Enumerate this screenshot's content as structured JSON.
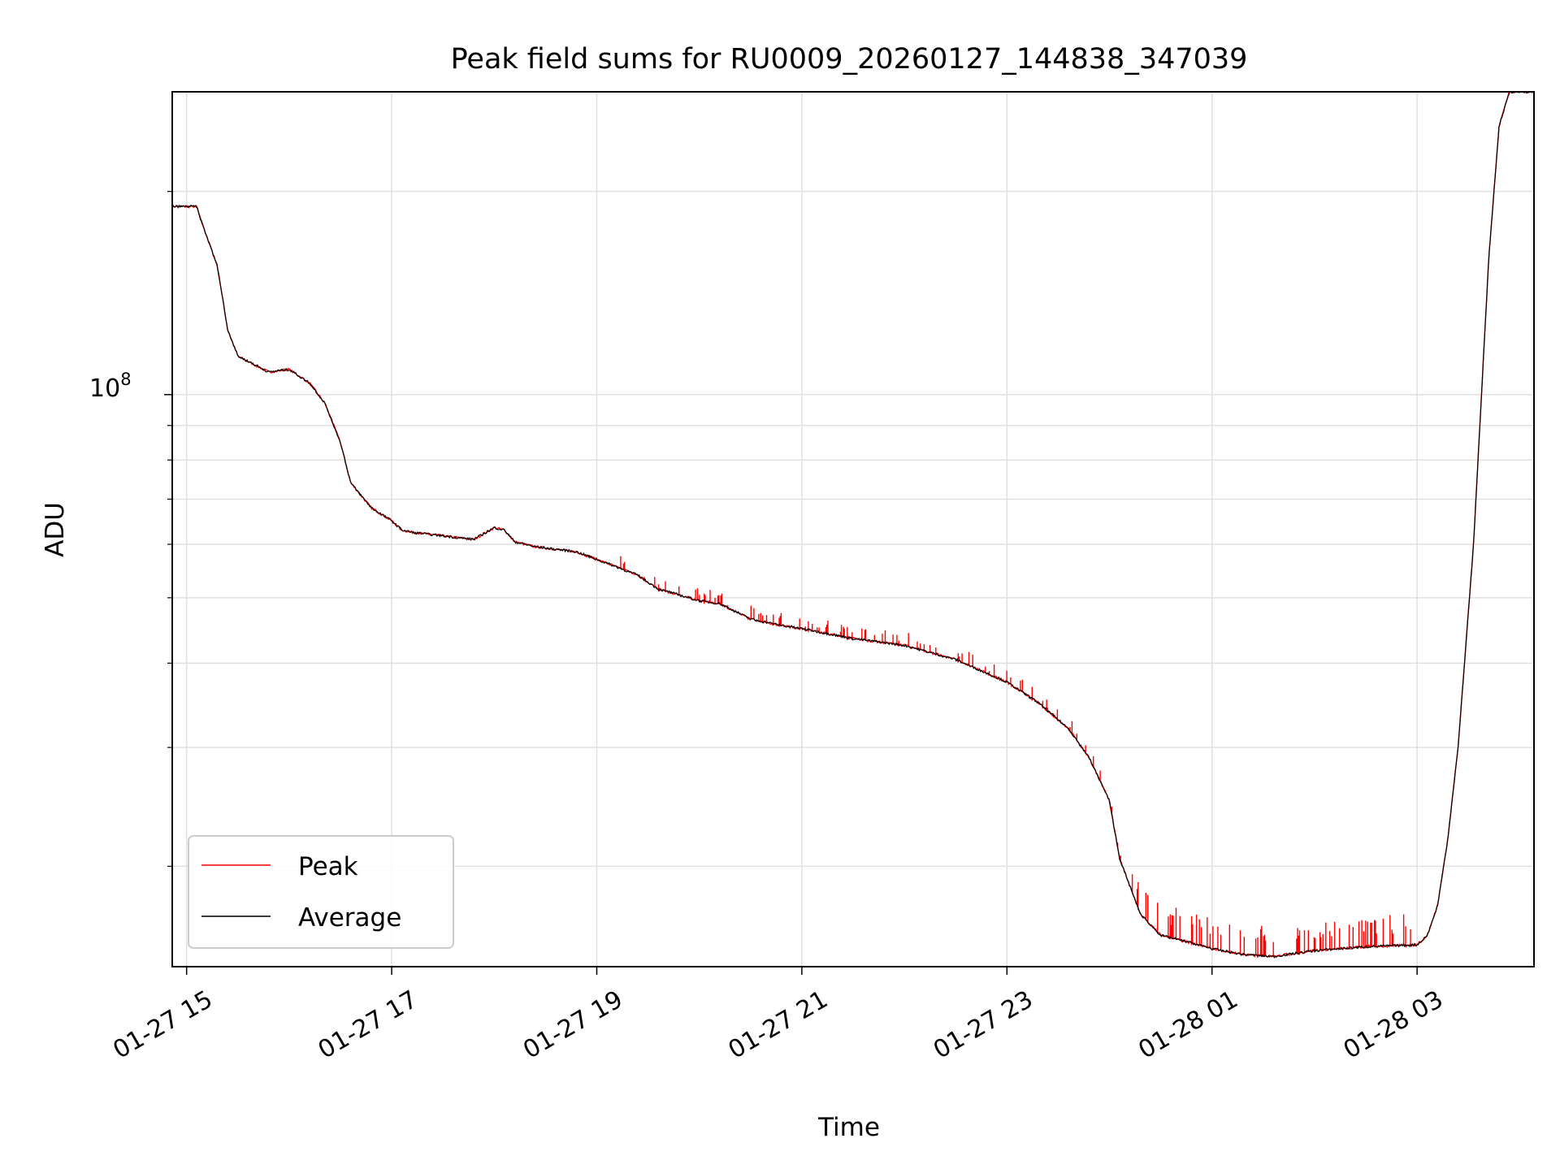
{
  "chart_data": {
    "type": "line",
    "title": "Peak field sums for RU0009_20260127_144838_347039",
    "xlabel": "Time",
    "ylabel": "ADU",
    "y_scale": "log",
    "ylim": [
      14200000,
      281000000
    ],
    "xlim_hours": [
      -0.14,
      13.14
    ],
    "x_tick_labels": [
      "01-27 15",
      "01-27 17",
      "01-27 19",
      "01-27 21",
      "01-27 23",
      "01-28 01",
      "01-28 03"
    ],
    "x_ticks_hours": [
      0,
      2,
      4,
      6,
      8,
      10,
      12
    ],
    "y_major_tick": {
      "base": "10",
      "exponent": "8",
      "value": 100000000
    },
    "y_minor_ticks": [
      20000000,
      30000000,
      40000000,
      50000000,
      60000000,
      70000000,
      80000000,
      90000000,
      200000000
    ],
    "grid": true,
    "legend_position": "lower-left",
    "colors": {
      "peak": "#ff0000",
      "average": "#000000",
      "grid": "#e0e0e0"
    },
    "series": [
      {
        "name": "Peak",
        "color": "#ff0000",
        "spikes": true,
        "x_hours": [
          -0.14,
          0.1,
          0.12,
          0.3,
          0.4,
          0.5,
          0.6,
          0.8,
          1.0,
          1.2,
          1.35,
          1.5,
          1.6,
          1.8,
          2.0,
          2.1,
          2.2,
          2.4,
          2.6,
          2.8,
          3.0,
          3.1,
          3.2,
          3.4,
          3.6,
          3.8,
          4.0,
          4.2,
          4.4,
          4.6,
          4.8,
          5.0,
          5.2,
          5.5,
          5.8,
          6.0,
          6.5,
          7.0,
          7.5,
          8.0,
          8.3,
          8.6,
          8.8,
          9.0,
          9.1,
          9.3,
          9.5,
          9.8,
          10.0,
          10.3,
          10.6,
          11.0,
          11.5,
          12.0,
          12.1,
          12.2,
          12.3,
          12.4,
          12.55,
          12.7,
          12.8,
          12.9,
          13.14
        ],
        "y_values": [
          190000000,
          190000000,
          185000000,
          155000000,
          125000000,
          114000000,
          112000000,
          108000000,
          109000000,
          104000000,
          97000000,
          85000000,
          74000000,
          68000000,
          65000000,
          63000000,
          62500000,
          62000000,
          61500000,
          61000000,
          63500000,
          63000000,
          60500000,
          59500000,
          59000000,
          58500000,
          57000000,
          55500000,
          54000000,
          51500000,
          50500000,
          49500000,
          49000000,
          46500000,
          45500000,
          45000000,
          43500000,
          42500000,
          40500000,
          37500000,
          35000000,
          32000000,
          29000000,
          25000000,
          20500000,
          17000000,
          15800000,
          15400000,
          15100000,
          14800000,
          14700000,
          15000000,
          15200000,
          15300000,
          15800000,
          17500000,
          22000000,
          30000000,
          60000000,
          160000000,
          250000000,
          281000000,
          281000000
        ]
      },
      {
        "name": "Average",
        "color": "#000000",
        "spikes": false,
        "x_hours": [
          -0.14,
          0.1,
          0.12,
          0.3,
          0.4,
          0.5,
          0.6,
          0.8,
          1.0,
          1.2,
          1.35,
          1.5,
          1.6,
          1.8,
          2.0,
          2.1,
          2.2,
          2.4,
          2.6,
          2.8,
          3.0,
          3.1,
          3.2,
          3.4,
          3.6,
          3.8,
          4.0,
          4.2,
          4.4,
          4.6,
          4.8,
          5.0,
          5.2,
          5.5,
          5.8,
          6.0,
          6.5,
          7.0,
          7.5,
          8.0,
          8.3,
          8.6,
          8.8,
          9.0,
          9.1,
          9.3,
          9.5,
          9.8,
          10.0,
          10.3,
          10.6,
          11.0,
          11.5,
          12.0,
          12.1,
          12.2,
          12.3,
          12.4,
          12.55,
          12.7,
          12.8,
          12.9,
          13.14
        ],
        "y_values": [
          190000000,
          190000000,
          185000000,
          155000000,
          125000000,
          114000000,
          112000000,
          108000000,
          109000000,
          104000000,
          97000000,
          85000000,
          74000000,
          68000000,
          65000000,
          63000000,
          62500000,
          62000000,
          61500000,
          61000000,
          63500000,
          63000000,
          60500000,
          59500000,
          59000000,
          58500000,
          57000000,
          55500000,
          54000000,
          51500000,
          50500000,
          49500000,
          49000000,
          46500000,
          45500000,
          45000000,
          43500000,
          42500000,
          40500000,
          37500000,
          35000000,
          32000000,
          29000000,
          25000000,
          20500000,
          17000000,
          15800000,
          15400000,
          15100000,
          14800000,
          14700000,
          15000000,
          15200000,
          15300000,
          15800000,
          17500000,
          22000000,
          30000000,
          60000000,
          160000000,
          250000000,
          281000000,
          281000000
        ]
      }
    ],
    "legend": [
      {
        "label": "Peak",
        "color": "#ff0000"
      },
      {
        "label": "Average",
        "color": "#000000"
      }
    ]
  }
}
